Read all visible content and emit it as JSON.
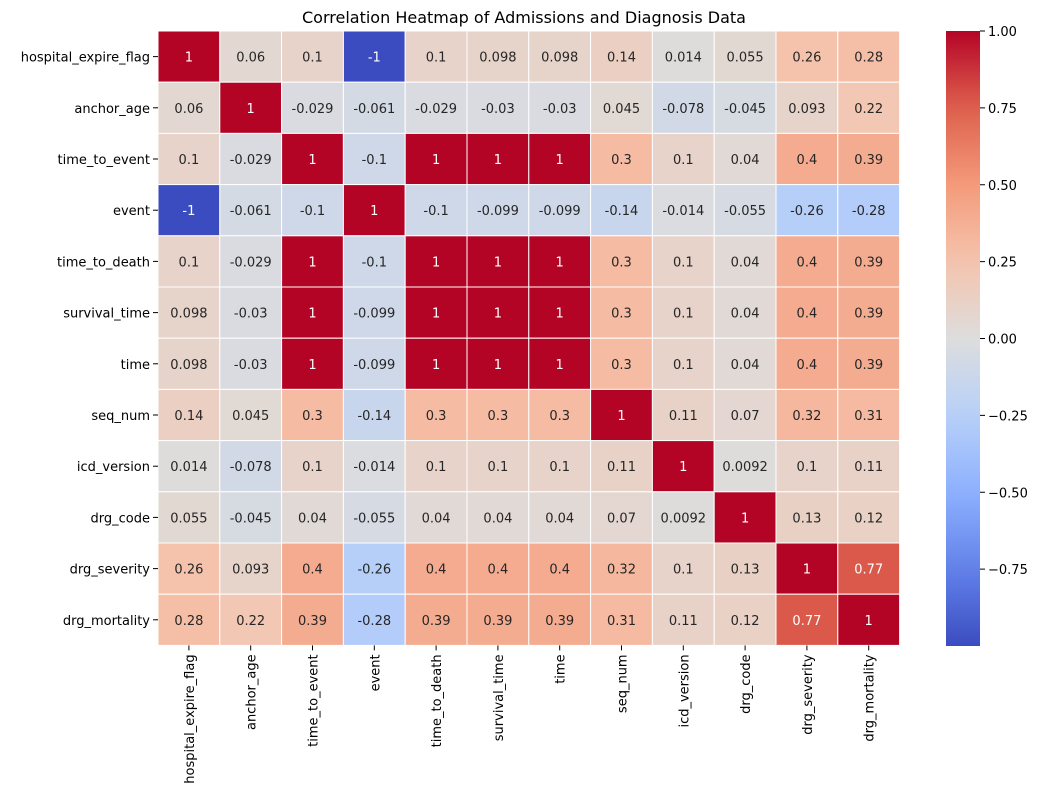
{
  "chart_data": {
    "type": "heatmap",
    "title": "Correlation Heatmap of Admissions and Diagnosis Data",
    "xlabel": "",
    "ylabel": "",
    "x_labels": [
      "hospital_expire_flag",
      "anchor_age",
      "time_to_event",
      "event",
      "time_to_death",
      "survival_time",
      "time",
      "seq_num",
      "icd_version",
      "drg_code",
      "drg_severity",
      "drg_mortality"
    ],
    "y_labels": [
      "hospital_expire_flag",
      "anchor_age",
      "time_to_event",
      "event",
      "time_to_death",
      "survival_time",
      "time",
      "seq_num",
      "icd_version",
      "drg_code",
      "drg_severity",
      "drg_mortality"
    ],
    "values": [
      [
        1,
        0.06,
        0.1,
        -1,
        0.1,
        0.098,
        0.098,
        0.14,
        0.014,
        0.055,
        0.26,
        0.28
      ],
      [
        0.06,
        1,
        -0.029,
        -0.061,
        -0.029,
        -0.03,
        -0.03,
        0.045,
        -0.078,
        -0.045,
        0.093,
        0.22
      ],
      [
        0.1,
        -0.029,
        1,
        -0.1,
        1,
        1,
        1,
        0.3,
        0.1,
        0.04,
        0.4,
        0.39
      ],
      [
        -1,
        -0.061,
        -0.1,
        1,
        -0.1,
        -0.099,
        -0.099,
        -0.14,
        -0.014,
        -0.055,
        -0.26,
        -0.28
      ],
      [
        0.1,
        -0.029,
        1,
        -0.1,
        1,
        1,
        1,
        0.3,
        0.1,
        0.04,
        0.4,
        0.39
      ],
      [
        0.098,
        -0.03,
        1,
        -0.099,
        1,
        1,
        1,
        0.3,
        0.1,
        0.04,
        0.4,
        0.39
      ],
      [
        0.098,
        -0.03,
        1,
        -0.099,
        1,
        1,
        1,
        0.3,
        0.1,
        0.04,
        0.4,
        0.39
      ],
      [
        0.14,
        0.045,
        0.3,
        -0.14,
        0.3,
        0.3,
        0.3,
        1,
        0.11,
        0.07,
        0.32,
        0.31
      ],
      [
        0.014,
        -0.078,
        0.1,
        -0.014,
        0.1,
        0.1,
        0.1,
        0.11,
        1,
        0.0092,
        0.1,
        0.11
      ],
      [
        0.055,
        -0.045,
        0.04,
        -0.055,
        0.04,
        0.04,
        0.04,
        0.07,
        0.0092,
        1,
        0.13,
        0.12
      ],
      [
        0.26,
        0.093,
        0.4,
        -0.26,
        0.4,
        0.4,
        0.4,
        0.32,
        0.1,
        0.13,
        1,
        0.77
      ],
      [
        0.28,
        0.22,
        0.39,
        -0.28,
        0.39,
        0.39,
        0.39,
        0.31,
        0.11,
        0.12,
        0.77,
        1
      ]
    ],
    "value_range": [
      -1,
      1
    ],
    "colormap": "coolwarm",
    "colorbar": {
      "ticks": [
        1.0,
        0.75,
        0.5,
        0.25,
        0.0,
        -0.25,
        -0.5,
        -0.75
      ],
      "tick_labels": [
        "1.00",
        "0.75",
        "0.50",
        "0.25",
        "0.00",
        "−0.25",
        "−0.50",
        "−0.75"
      ]
    },
    "grid": false,
    "annotations": true
  }
}
